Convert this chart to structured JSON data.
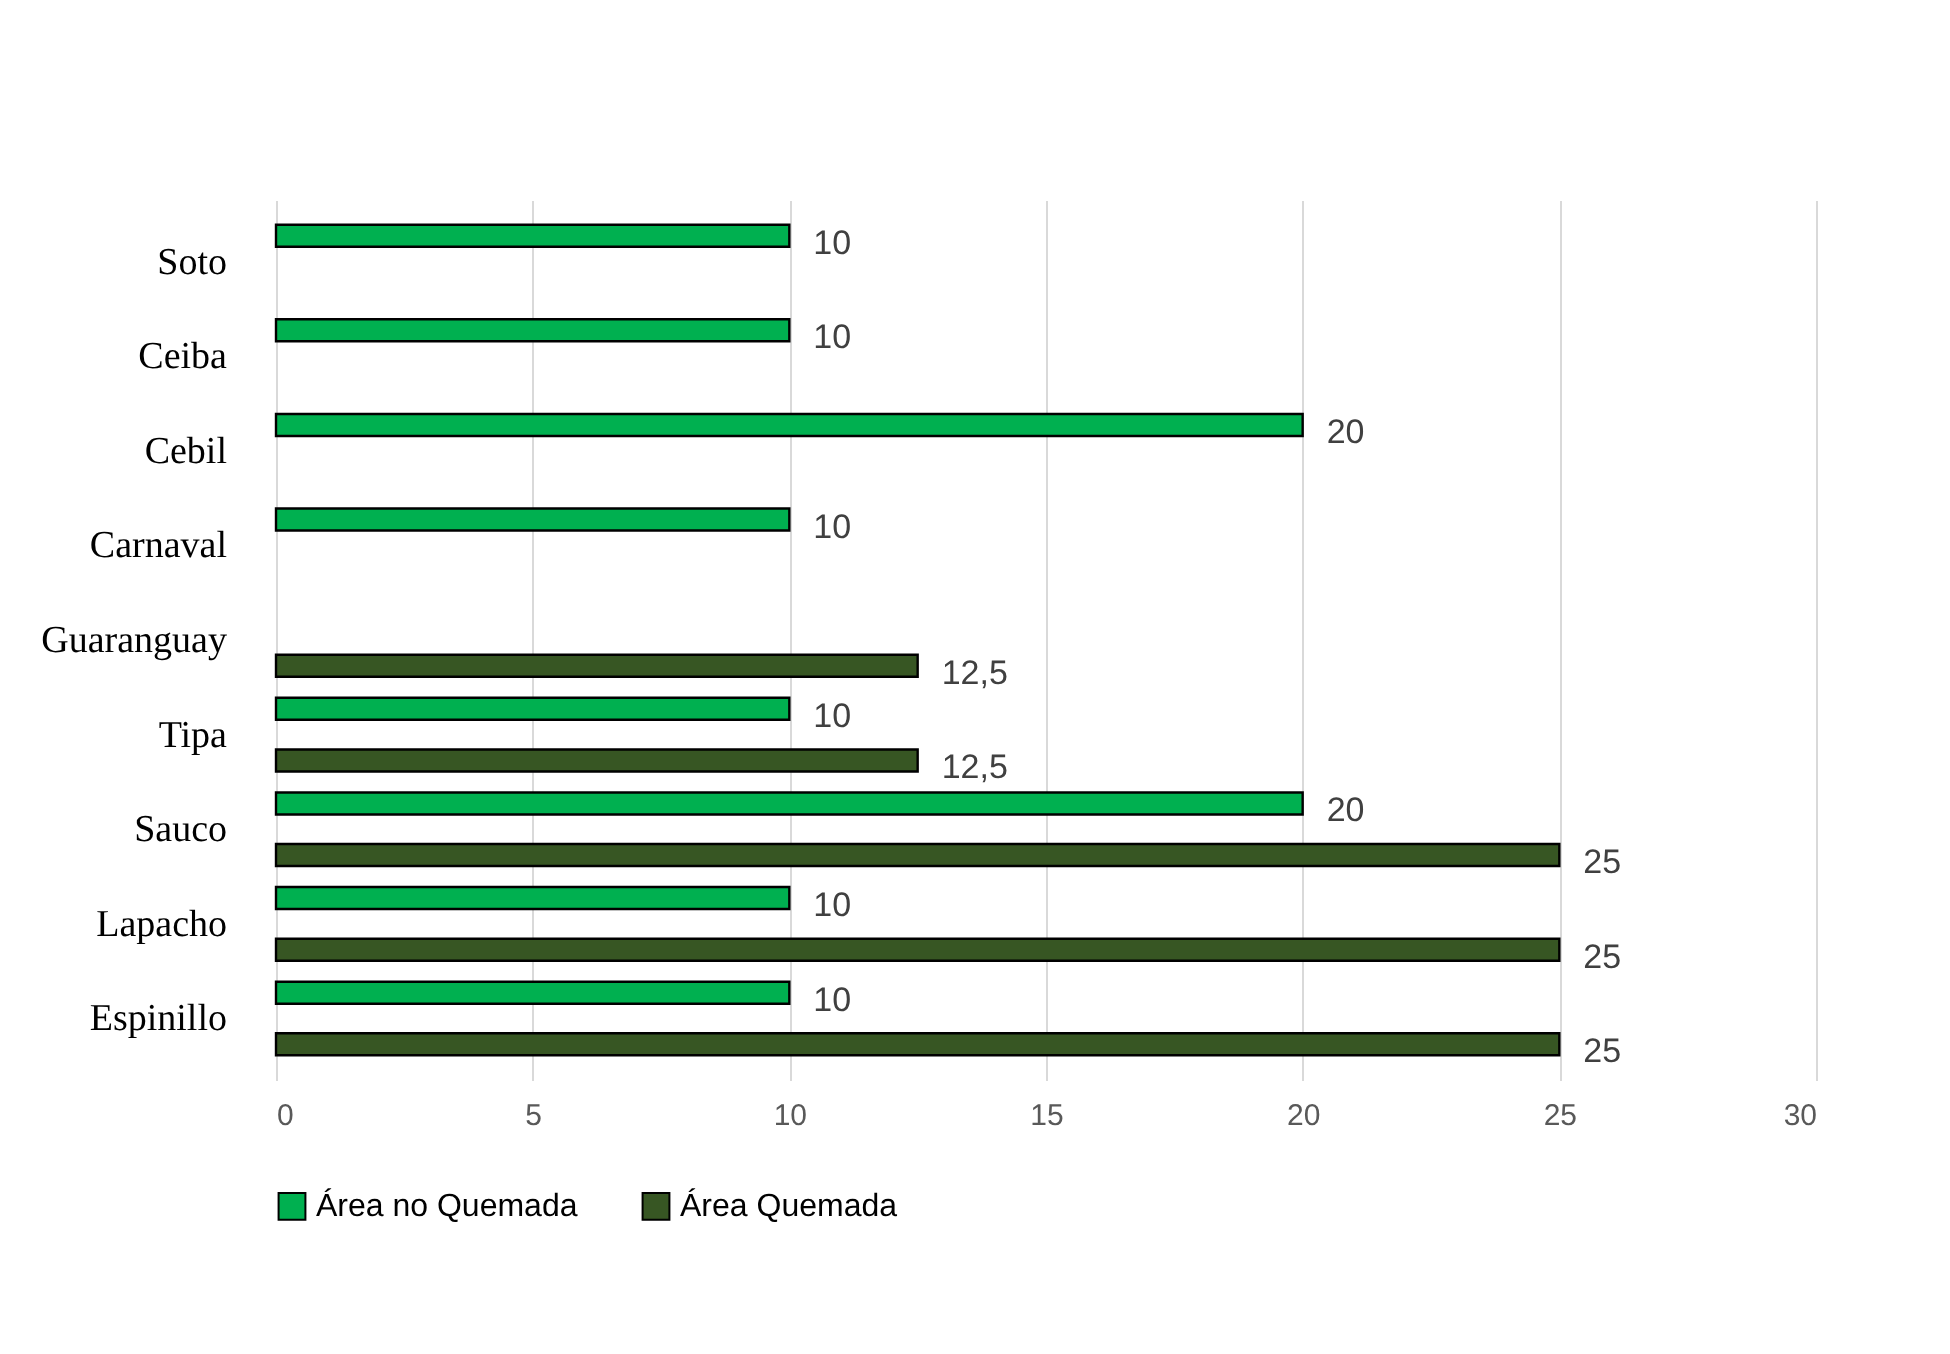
{
  "chart_data": {
    "type": "bar",
    "orientation": "horizontal",
    "categories": [
      "Soto",
      "Ceiba",
      "Cebil",
      "Carnaval",
      "Guaranguay",
      "Tipa",
      "Sauco",
      "Lapacho",
      "Espinillo"
    ],
    "series": [
      {
        "name": "Área no Quemada",
        "color": "#00b050",
        "values": [
          10,
          10,
          20,
          10,
          null,
          10,
          20,
          10,
          10
        ],
        "value_labels": [
          "10",
          "10",
          "20",
          "10",
          null,
          "10",
          "20",
          "10",
          "10"
        ]
      },
      {
        "name": "Área Quemada",
        "color": "#375623",
        "values": [
          null,
          null,
          null,
          null,
          12.5,
          12.5,
          25,
          25,
          25
        ],
        "value_labels": [
          null,
          null,
          null,
          null,
          "12,5",
          "12,5",
          "25",
          "25",
          "25"
        ]
      }
    ],
    "xlim": [
      0,
      30
    ],
    "xticks": [
      0,
      5,
      10,
      15,
      20,
      25,
      30
    ],
    "grid": "x",
    "legend": "bottom"
  }
}
